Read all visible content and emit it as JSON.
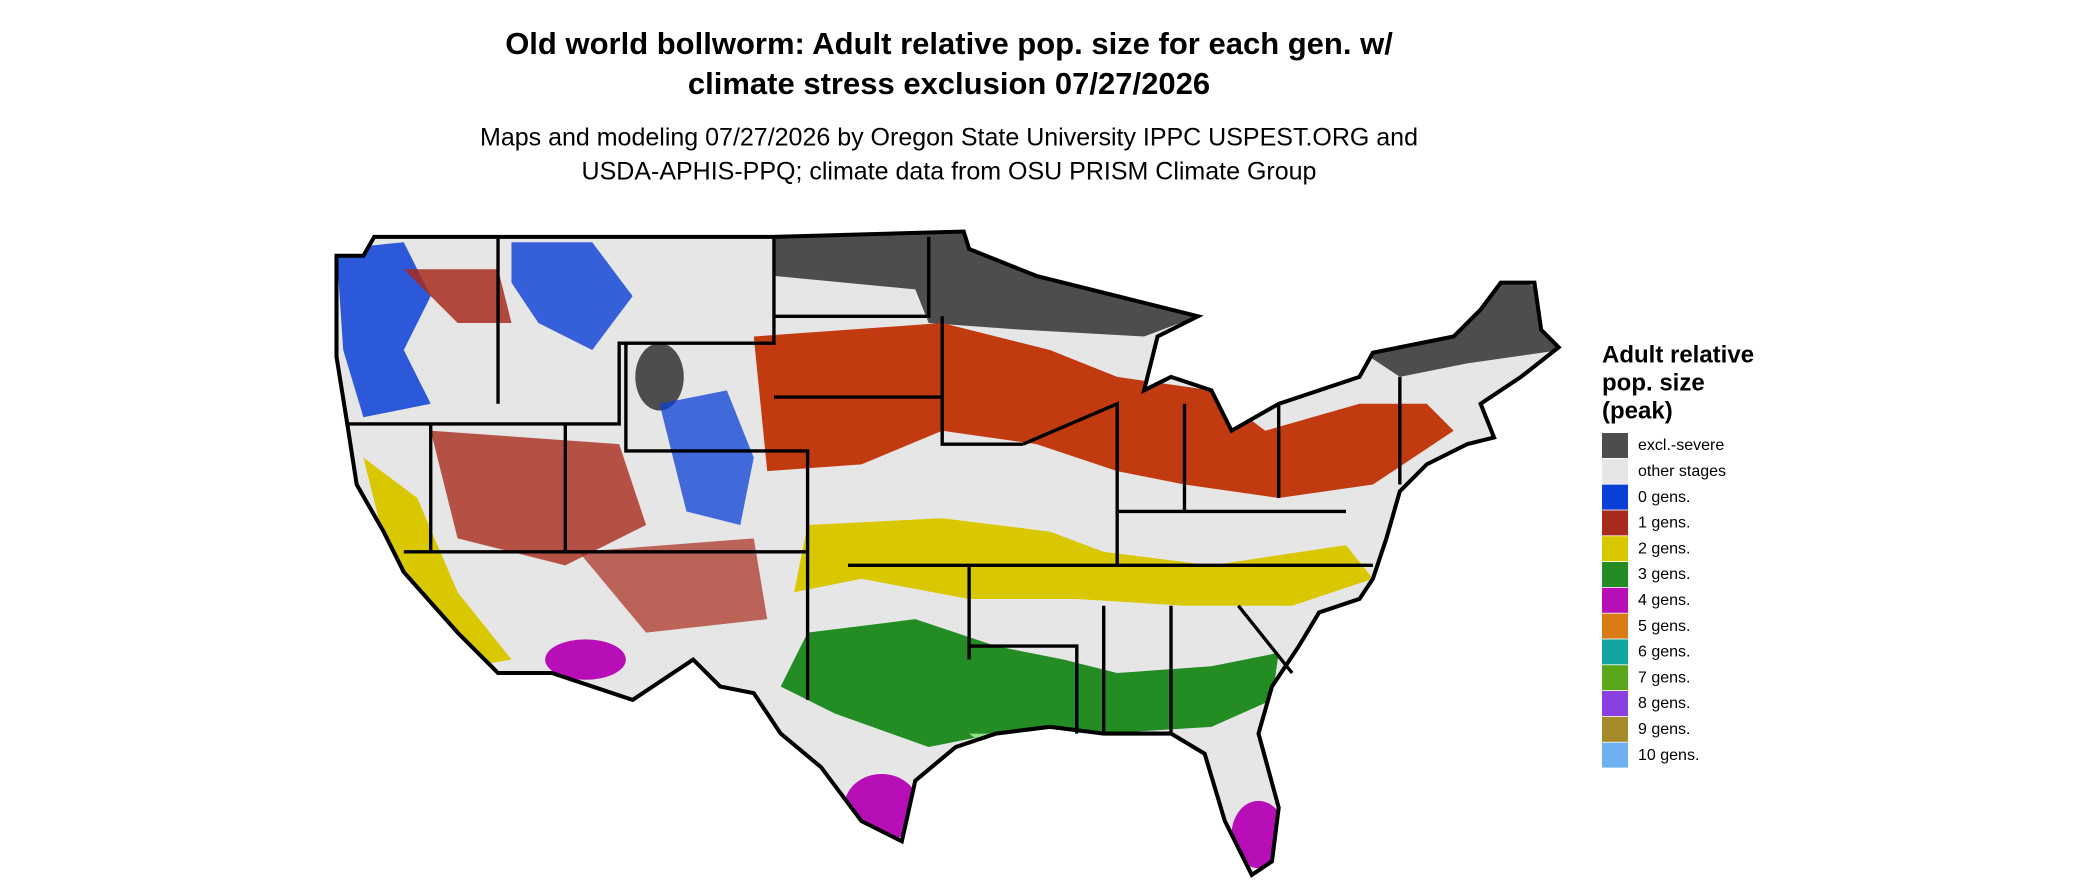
{
  "title": [
    "Old world bollworm: Adult relative pop. size for each gen. w/",
    "climate stress exclusion 07/27/2026"
  ],
  "subtitle": [
    "Maps and modeling 07/27/2026 by Oregon State University IPPC USPEST.ORG and",
    "USDA-APHIS-PPQ; climate data from OSU PRISM Climate Group"
  ],
  "legend": {
    "title": [
      "Adult relative",
      "pop. size",
      "(peak)"
    ],
    "items": [
      {
        "label": "excl.-severe",
        "color": "#4d4d4d"
      },
      {
        "label": "other stages",
        "color": "#e6e6e6"
      },
      {
        "label": "0 gens.",
        "color": "#0a3fd6"
      },
      {
        "label": "1 gens.",
        "color": "#a82a1c"
      },
      {
        "label": "2 gens.",
        "color": "#d9c700"
      },
      {
        "label": "3 gens.",
        "color": "#238c23"
      },
      {
        "label": "4 gens.",
        "color": "#b80eb8"
      },
      {
        "label": "5 gens.",
        "color": "#d97a14"
      },
      {
        "label": "6 gens.",
        "color": "#12a3a3"
      },
      {
        "label": "7 gens.",
        "color": "#5aa81a"
      },
      {
        "label": "8 gens.",
        "color": "#8a3fe0"
      },
      {
        "label": "9 gens.",
        "color": "#a68a2a"
      },
      {
        "label": "10 gens.",
        "color": "#6eaff2"
      }
    ]
  }
}
